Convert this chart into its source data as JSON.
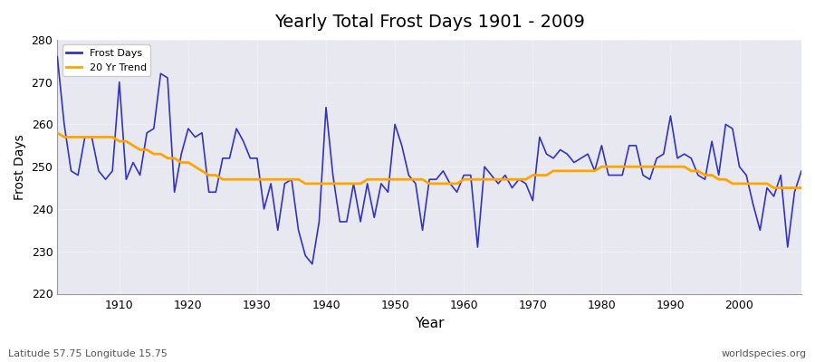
{
  "title": "Yearly Total Frost Days 1901 - 2009",
  "xlabel": "Year",
  "ylabel": "Frost Days",
  "footnote_left": "Latitude 57.75 Longitude 15.75",
  "footnote_right": "worldspecies.org",
  "ylim": [
    220,
    280
  ],
  "xlim": [
    1901,
    2009
  ],
  "legend_labels": [
    "Frost Days",
    "20 Yr Trend"
  ],
  "frost_color": "#3333bb",
  "trend_color": "#ffa500",
  "bg_color": "#e8e8f0",
  "fig_color": "#ffffff",
  "years": [
    1901,
    1902,
    1903,
    1904,
    1905,
    1906,
    1907,
    1908,
    1909,
    1910,
    1911,
    1912,
    1913,
    1914,
    1915,
    1916,
    1917,
    1918,
    1919,
    1920,
    1921,
    1922,
    1923,
    1924,
    1925,
    1926,
    1927,
    1928,
    1929,
    1930,
    1931,
    1932,
    1933,
    1934,
    1935,
    1936,
    1937,
    1938,
    1939,
    1940,
    1941,
    1942,
    1943,
    1944,
    1945,
    1946,
    1947,
    1948,
    1949,
    1950,
    1951,
    1952,
    1953,
    1954,
    1955,
    1956,
    1957,
    1958,
    1959,
    1960,
    1961,
    1962,
    1963,
    1964,
    1965,
    1966,
    1967,
    1968,
    1969,
    1970,
    1971,
    1972,
    1973,
    1974,
    1975,
    1976,
    1977,
    1978,
    1979,
    1980,
    1981,
    1982,
    1983,
    1984,
    1985,
    1986,
    1987,
    1988,
    1989,
    1990,
    1991,
    1992,
    1993,
    1994,
    1995,
    1996,
    1997,
    1998,
    1999,
    2000,
    2001,
    2002,
    2003,
    2004,
    2005,
    2006,
    2007,
    2008,
    2009
  ],
  "frost_days": [
    276,
    260,
    249,
    248,
    257,
    257,
    249,
    247,
    249,
    270,
    247,
    251,
    248,
    258,
    259,
    272,
    271,
    244,
    253,
    259,
    257,
    258,
    244,
    244,
    252,
    252,
    259,
    256,
    252,
    252,
    240,
    246,
    235,
    246,
    247,
    235,
    229,
    227,
    237,
    264,
    248,
    237,
    237,
    246,
    237,
    246,
    238,
    246,
    244,
    260,
    255,
    248,
    246,
    235,
    247,
    247,
    249,
    246,
    244,
    248,
    248,
    231,
    250,
    248,
    246,
    248,
    245,
    247,
    246,
    242,
    257,
    253,
    252,
    254,
    253,
    251,
    252,
    253,
    249,
    255,
    248,
    248,
    248,
    255,
    255,
    248,
    247,
    252,
    253,
    262,
    252,
    253,
    252,
    248,
    247,
    256,
    248,
    260,
    259,
    250,
    248,
    241,
    235,
    245,
    243,
    248,
    231,
    244,
    249
  ],
  "trend_vals_years": [
    1901,
    1902,
    1903,
    1904,
    1905,
    1906,
    1907,
    1908,
    1909,
    1910,
    1911,
    1912,
    1913,
    1914,
    1915,
    1916,
    1917,
    1918,
    1919,
    1920,
    1921,
    1922,
    1923,
    1924,
    1925,
    1926,
    1927,
    1928,
    1929,
    1930,
    1931,
    1932,
    1933,
    1934,
    1935,
    1936,
    1937,
    1938,
    1939,
    1940,
    1941,
    1942,
    1943,
    1944,
    1945,
    1946,
    1947,
    1948,
    1949,
    1950,
    1951,
    1952,
    1953,
    1954,
    1955,
    1956,
    1957,
    1958,
    1959,
    1960,
    1961,
    1962,
    1963,
    1964,
    1965,
    1966,
    1967,
    1968,
    1969,
    1970,
    1971,
    1972,
    1973,
    1974,
    1975,
    1976,
    1977,
    1978,
    1979,
    1980,
    1981,
    1982,
    1983,
    1984,
    1985,
    1986,
    1987,
    1988,
    1989,
    1990,
    1991,
    1992,
    1993,
    1994,
    1995,
    1996,
    1997,
    1998,
    1999,
    2000,
    2001,
    2002,
    2003,
    2004,
    2005,
    2006,
    2007,
    2008,
    2009
  ],
  "trend_vals": [
    258,
    257,
    257,
    257,
    257,
    257,
    257,
    257,
    257,
    256,
    256,
    255,
    254,
    254,
    253,
    253,
    252,
    252,
    251,
    251,
    250,
    249,
    248,
    248,
    247,
    247,
    247,
    247,
    247,
    247,
    247,
    247,
    247,
    247,
    247,
    247,
    246,
    246,
    246,
    246,
    246,
    246,
    246,
    246,
    246,
    247,
    247,
    247,
    247,
    247,
    247,
    247,
    247,
    247,
    246,
    246,
    246,
    246,
    246,
    247,
    247,
    247,
    247,
    247,
    247,
    247,
    247,
    247,
    247,
    248,
    248,
    248,
    249,
    249,
    249,
    249,
    249,
    249,
    249,
    250,
    250,
    250,
    250,
    250,
    250,
    250,
    250,
    250,
    250,
    250,
    250,
    250,
    249,
    249,
    248,
    248,
    247,
    247,
    246,
    246,
    246,
    246,
    246,
    246,
    245,
    245,
    245,
    245,
    245
  ]
}
